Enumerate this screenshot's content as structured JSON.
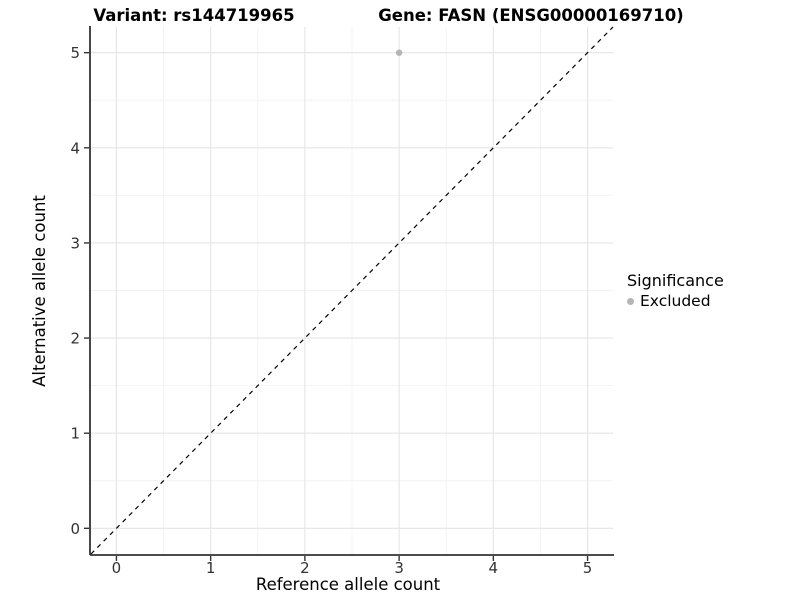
{
  "chart_data": {
    "type": "scatter",
    "titles": [
      "Variant: rs144719965",
      "Gene: FASN (ENSG00000169710)"
    ],
    "xlabel": "Reference allele count",
    "ylabel": "Alternative allele count",
    "xticks": [
      0,
      1,
      2,
      3,
      4,
      5
    ],
    "yticks": [
      0,
      1,
      2,
      3,
      4,
      5
    ],
    "xlim": [
      -0.27,
      5.27
    ],
    "ylim": [
      -0.27,
      5.27
    ],
    "grid": "major and minor gridlines, light gray on white",
    "series": [
      {
        "name": "Excluded",
        "marker": "circle",
        "color": "#b5b5b5",
        "points": [
          {
            "x": 3,
            "y": 5
          }
        ]
      }
    ],
    "reference_line": {
      "kind": "identity y=x",
      "style": "dashed",
      "color": "#000000"
    },
    "legend": {
      "title": "Significance",
      "position": "right-middle",
      "items": [
        {
          "label": "Excluded",
          "color": "#b5b5b5"
        }
      ]
    }
  },
  "colors": {
    "background": "#ffffff",
    "grid_major": "#e5e5e5",
    "grid_minor": "#f2f2f2",
    "axis": "#333333",
    "tick_text": "#333333",
    "title_text": "#000000"
  }
}
